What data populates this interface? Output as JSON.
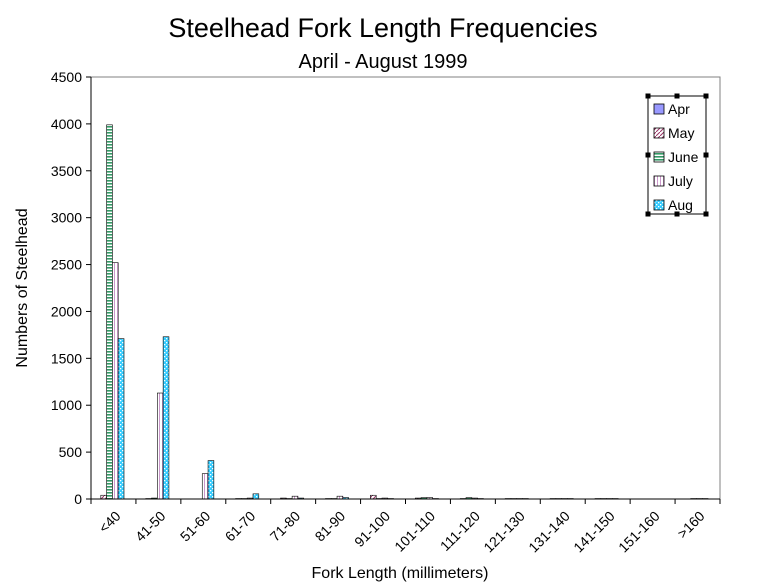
{
  "chart_data": {
    "type": "bar",
    "title": "Steelhead Fork Length Frequencies",
    "subtitle": "April - August 1999",
    "xlabel": "Fork Length (millimeters)",
    "ylabel": "Numbers of Steelhead",
    "ylim": [
      0,
      4500
    ],
    "yticks": [
      "0",
      "500",
      "1000",
      "1500",
      "2000",
      "2500",
      "3000",
      "3500",
      "4000",
      "4500"
    ],
    "categories": [
      "<40",
      "41-50",
      "51-60",
      "61-70",
      "71-80",
      "81-90",
      "91-100",
      "101-110",
      "111-120",
      "121-130",
      "131-140",
      "141-150",
      "151-160",
      ">160"
    ],
    "series": [
      {
        "name": "Apr",
        "values": [
          0,
          0,
          0,
          0,
          0,
          0,
          0,
          0,
          0,
          0,
          0,
          0,
          0,
          0
        ]
      },
      {
        "name": "May",
        "values": [
          40,
          5,
          0,
          5,
          10,
          5,
          40,
          10,
          5,
          5,
          5,
          5,
          0,
          0
        ]
      },
      {
        "name": "June",
        "values": [
          3990,
          10,
          0,
          5,
          5,
          5,
          5,
          15,
          15,
          5,
          5,
          5,
          0,
          5
        ]
      },
      {
        "name": "July",
        "values": [
          2520,
          1130,
          270,
          10,
          30,
          30,
          10,
          15,
          10,
          5,
          5,
          5,
          0,
          5
        ]
      },
      {
        "name": "Aug",
        "values": [
          1710,
          1730,
          410,
          55,
          10,
          15,
          5,
          5,
          5,
          5,
          5,
          5,
          0,
          5
        ]
      }
    ],
    "legend_position": "top-right",
    "grid": false,
    "colors": {
      "Apr": "#9999ff",
      "May": "#993366",
      "June": "#339966",
      "July": "#cc99cc",
      "Aug": "#33ccff"
    }
  }
}
